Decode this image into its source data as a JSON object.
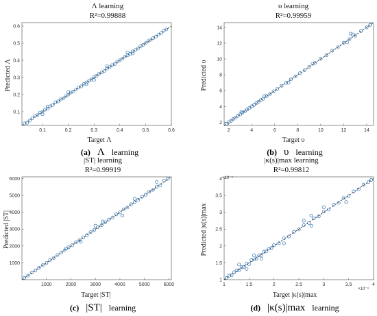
{
  "charts": [
    {
      "id": "a",
      "title": "Λ learning",
      "r2": "R²=0.99888",
      "xlabel": "Target Λ",
      "ylabel": "Predicted Λ",
      "caption_letter": "(a)",
      "caption_symbol": "Λ",
      "caption_word": "learning"
    },
    {
      "id": "b",
      "title": "υ learning",
      "r2": "R²=0.99959",
      "xlabel": "Target υ",
      "ylabel": "Predicted υ",
      "caption_letter": "(b)",
      "caption_symbol": "υ",
      "caption_word": "learning"
    },
    {
      "id": "c",
      "title": "|ST| learning",
      "r2": "R²=0.99919",
      "xlabel": "Target |ST|",
      "ylabel": "Predicted |ST|",
      "caption_letter": "(c)",
      "caption_symbol": "|ST|",
      "caption_word": "learning"
    },
    {
      "id": "d",
      "title": "|κ(s)|max learning",
      "r2": "R²=0.99812",
      "xlabel": "Target |κ(s)|max",
      "ylabel": "Predicted |κ(s)|max",
      "x_exponent": "×10⁻⁴",
      "y_exponent": "×10⁻⁴",
      "caption_letter": "(d)",
      "caption_symbol": "|κ(s)|max",
      "caption_word": "learning"
    }
  ],
  "colors": {
    "marker": "#2a6fb0",
    "fit_line": "#1a1a1a"
  },
  "chart_data": [
    {
      "type": "scatter",
      "title": "Λ learning",
      "subtitle": "R²=0.99888",
      "xlabel": "Target Λ",
      "ylabel": "Predicted Λ",
      "xlim": [
        0.02,
        0.6
      ],
      "ylim": [
        0.02,
        0.62
      ],
      "xticks": [
        0.1,
        0.2,
        0.3,
        0.4,
        0.5,
        0.6
      ],
      "yticks": [
        0.1,
        0.2,
        0.3,
        0.4,
        0.5,
        0.6
      ],
      "tick_decimals": 1,
      "grid": false,
      "fit_line": [
        [
          0.02,
          0.02
        ],
        [
          0.6,
          0.6
        ]
      ],
      "series": [
        {
          "points": [
            [
              0.03,
              0.032
            ],
            [
              0.04,
              0.035
            ],
            [
              0.05,
              0.048
            ],
            [
              0.06,
              0.062
            ],
            [
              0.07,
              0.075
            ],
            [
              0.08,
              0.08
            ],
            [
              0.09,
              0.095
            ],
            [
              0.1,
              0.1
            ],
            [
              0.11,
              0.112
            ],
            [
              0.12,
              0.118
            ],
            [
              0.13,
              0.132
            ],
            [
              0.14,
              0.14
            ],
            [
              0.15,
              0.155
            ],
            [
              0.16,
              0.16
            ],
            [
              0.17,
              0.172
            ],
            [
              0.18,
              0.178
            ],
            [
              0.19,
              0.19
            ],
            [
              0.2,
              0.2
            ],
            [
              0.21,
              0.212
            ],
            [
              0.22,
              0.218
            ],
            [
              0.23,
              0.23
            ],
            [
              0.24,
              0.242
            ],
            [
              0.25,
              0.248
            ],
            [
              0.26,
              0.262
            ],
            [
              0.27,
              0.27
            ],
            [
              0.28,
              0.28
            ],
            [
              0.29,
              0.288
            ],
            [
              0.3,
              0.302
            ],
            [
              0.31,
              0.31
            ],
            [
              0.32,
              0.322
            ],
            [
              0.33,
              0.33
            ],
            [
              0.34,
              0.338
            ],
            [
              0.35,
              0.352
            ],
            [
              0.36,
              0.36
            ],
            [
              0.37,
              0.372
            ],
            [
              0.38,
              0.378
            ],
            [
              0.39,
              0.392
            ],
            [
              0.4,
              0.4
            ],
            [
              0.41,
              0.41
            ],
            [
              0.42,
              0.422
            ],
            [
              0.43,
              0.43
            ],
            [
              0.44,
              0.438
            ],
            [
              0.45,
              0.452
            ],
            [
              0.46,
              0.46
            ],
            [
              0.47,
              0.468
            ],
            [
              0.48,
              0.482
            ],
            [
              0.49,
              0.49
            ],
            [
              0.5,
              0.5
            ],
            [
              0.51,
              0.512
            ],
            [
              0.52,
              0.52
            ],
            [
              0.53,
              0.53
            ],
            [
              0.54,
              0.538
            ],
            [
              0.55,
              0.55
            ],
            [
              0.56,
              0.56
            ],
            [
              0.57,
              0.572
            ],
            [
              0.58,
              0.58
            ],
            [
              0.1,
              0.085
            ],
            [
              0.2,
              0.215
            ],
            [
              0.3,
              0.285
            ],
            [
              0.35,
              0.365
            ],
            [
              0.45,
              0.44
            ],
            [
              0.12,
              0.13
            ],
            [
              0.27,
              0.26
            ],
            [
              0.43,
              0.445
            ]
          ]
        }
      ]
    },
    {
      "type": "scatter",
      "title": "υ learning",
      "subtitle": "R²=0.99959",
      "xlabel": "Target υ",
      "ylabel": "Predicted υ",
      "xlim": [
        1.6,
        14.6
      ],
      "ylim": [
        1.6,
        14.6
      ],
      "xticks": [
        2,
        4,
        6,
        8,
        10,
        12,
        14
      ],
      "yticks": [
        2,
        4,
        6,
        8,
        10,
        12,
        14
      ],
      "tick_decimals": 0,
      "grid": false,
      "fit_line": [
        [
          1.6,
          1.6
        ],
        [
          14.6,
          14.6
        ]
      ],
      "series": [
        {
          "points": [
            [
              1.8,
              1.82
            ],
            [
              2.0,
              2.02
            ],
            [
              2.2,
              2.18
            ],
            [
              2.4,
              2.42
            ],
            [
              2.6,
              2.58
            ],
            [
              2.8,
              2.82
            ],
            [
              3.0,
              3.0
            ],
            [
              3.2,
              3.22
            ],
            [
              3.4,
              3.38
            ],
            [
              3.6,
              3.62
            ],
            [
              3.8,
              3.8
            ],
            [
              4.0,
              4.02
            ],
            [
              4.2,
              4.18
            ],
            [
              4.4,
              4.42
            ],
            [
              4.6,
              4.6
            ],
            [
              4.8,
              4.82
            ],
            [
              5.0,
              4.98
            ],
            [
              5.3,
              5.32
            ],
            [
              5.6,
              5.58
            ],
            [
              5.9,
              5.92
            ],
            [
              6.2,
              6.2
            ],
            [
              6.6,
              6.62
            ],
            [
              7.0,
              6.98
            ],
            [
              7.4,
              7.42
            ],
            [
              7.8,
              7.8
            ],
            [
              8.2,
              8.22
            ],
            [
              8.6,
              8.58
            ],
            [
              9.0,
              9.02
            ],
            [
              9.5,
              9.5
            ],
            [
              10.0,
              10.02
            ],
            [
              10.5,
              10.48
            ],
            [
              11.0,
              11.05
            ],
            [
              11.5,
              11.48
            ],
            [
              12.0,
              12.05
            ],
            [
              12.5,
              12.5
            ],
            [
              12.8,
              13.1
            ],
            [
              13.0,
              12.95
            ],
            [
              13.5,
              13.52
            ],
            [
              14.0,
              14.0
            ],
            [
              14.3,
              14.3
            ],
            [
              3.1,
              3.3
            ],
            [
              5.1,
              5.3
            ],
            [
              7.2,
              7.0
            ],
            [
              9.3,
              9.4
            ],
            [
              12.6,
              13.2
            ],
            [
              12.3,
              12.1
            ]
          ]
        }
      ]
    },
    {
      "type": "scatter",
      "title": "|ST| learning",
      "subtitle": "R²=0.99919",
      "xlabel": "Target |ST|",
      "ylabel": "Predicted |ST|",
      "xlim": [
        0,
        6100
      ],
      "ylim": [
        0,
        6100
      ],
      "xticks": [
        1000,
        2000,
        3000,
        4000,
        5000,
        6000
      ],
      "yticks": [
        1000,
        2000,
        3000,
        4000,
        5000,
        6000
      ],
      "tick_decimals": 0,
      "grid": false,
      "fit_line": [
        [
          0,
          0
        ],
        [
          6100,
          6100
        ]
      ],
      "series": [
        {
          "points": [
            [
              100,
              110
            ],
            [
              250,
              240
            ],
            [
              400,
              420
            ],
            [
              550,
              540
            ],
            [
              700,
              710
            ],
            [
              850,
              860
            ],
            [
              1000,
              990
            ],
            [
              1150,
              1170
            ],
            [
              1300,
              1290
            ],
            [
              1450,
              1460
            ],
            [
              1600,
              1610
            ],
            [
              1750,
              1740
            ],
            [
              1900,
              1920
            ],
            [
              2050,
              2040
            ],
            [
              2200,
              2220
            ],
            [
              2350,
              2340
            ],
            [
              2500,
              2510
            ],
            [
              2650,
              2640
            ],
            [
              2800,
              2820
            ],
            [
              2950,
              2940
            ],
            [
              3100,
              3120
            ],
            [
              3250,
              3230
            ],
            [
              3400,
              3410
            ],
            [
              3550,
              3560
            ],
            [
              3700,
              3690
            ],
            [
              3850,
              3870
            ],
            [
              4000,
              3990
            ],
            [
              4150,
              4170
            ],
            [
              4300,
              4280
            ],
            [
              4450,
              4470
            ],
            [
              4600,
              4600
            ],
            [
              4750,
              4740
            ],
            [
              4900,
              4920
            ],
            [
              5050,
              5040
            ],
            [
              5200,
              5230
            ],
            [
              5350,
              5330
            ],
            [
              5500,
              5520
            ],
            [
              5650,
              5600
            ],
            [
              5800,
              5880
            ],
            [
              5950,
              5980
            ],
            [
              3000,
              3200
            ],
            [
              2400,
              2250
            ],
            [
              4100,
              3800
            ],
            [
              1800,
              1850
            ],
            [
              5500,
              5800
            ],
            [
              3300,
              3450
            ],
            [
              4600,
              4800
            ]
          ]
        }
      ]
    },
    {
      "type": "scatter",
      "title": "|κ(s)|max learning",
      "subtitle": "R²=0.99812",
      "xlabel": "Target |κ(s)|max",
      "ylabel": "Predicted |κ(s)|max",
      "x_multiplier": "×10⁻⁴",
      "y_multiplier": "×10⁻⁴",
      "xlim": [
        1.0,
        4.0
      ],
      "ylim": [
        1.0,
        4.05
      ],
      "xticks": [
        1,
        1.5,
        2,
        2.5,
        3,
        3.5,
        4
      ],
      "yticks": [
        1,
        1.5,
        2,
        2.5,
        3,
        3.5,
        4
      ],
      "tick_decimals": 1,
      "grid": false,
      "fit_line": [
        [
          1.0,
          1.0
        ],
        [
          4.0,
          4.0
        ]
      ],
      "series": [
        {
          "points": [
            [
              1.05,
              1.05
            ],
            [
              1.1,
              1.12
            ],
            [
              1.15,
              1.13
            ],
            [
              1.2,
              1.22
            ],
            [
              1.25,
              1.27
            ],
            [
              1.3,
              1.28
            ],
            [
              1.35,
              1.37
            ],
            [
              1.4,
              1.38
            ],
            [
              1.45,
              1.48
            ],
            [
              1.5,
              1.46
            ],
            [
              1.55,
              1.58
            ],
            [
              1.6,
              1.6
            ],
            [
              1.65,
              1.63
            ],
            [
              1.7,
              1.72
            ],
            [
              1.75,
              1.73
            ],
            [
              1.8,
              1.83
            ],
            [
              1.85,
              1.84
            ],
            [
              1.9,
              1.92
            ],
            [
              1.95,
              1.94
            ],
            [
              2.0,
              2.02
            ],
            [
              2.1,
              2.08
            ],
            [
              2.2,
              2.23
            ],
            [
              2.3,
              2.28
            ],
            [
              2.4,
              2.42
            ],
            [
              2.5,
              2.49
            ],
            [
              2.6,
              2.62
            ],
            [
              2.7,
              2.68
            ],
            [
              2.75,
              2.9
            ],
            [
              2.8,
              2.82
            ],
            [
              2.9,
              2.88
            ],
            [
              3.0,
              3.02
            ],
            [
              3.1,
              3.08
            ],
            [
              3.2,
              3.22
            ],
            [
              3.3,
              3.28
            ],
            [
              3.4,
              3.42
            ],
            [
              3.5,
              3.48
            ],
            [
              3.6,
              3.62
            ],
            [
              3.7,
              3.68
            ],
            [
              3.8,
              3.82
            ],
            [
              3.9,
              3.9
            ],
            [
              3.95,
              3.96
            ],
            [
              1.3,
              1.45
            ],
            [
              1.45,
              1.32
            ],
            [
              1.6,
              1.72
            ],
            [
              1.75,
              1.62
            ],
            [
              2.2,
              2.08
            ],
            [
              2.6,
              2.75
            ],
            [
              2.75,
              2.6
            ],
            [
              3.0,
              3.15
            ],
            [
              3.45,
              3.3
            ]
          ]
        }
      ]
    }
  ]
}
